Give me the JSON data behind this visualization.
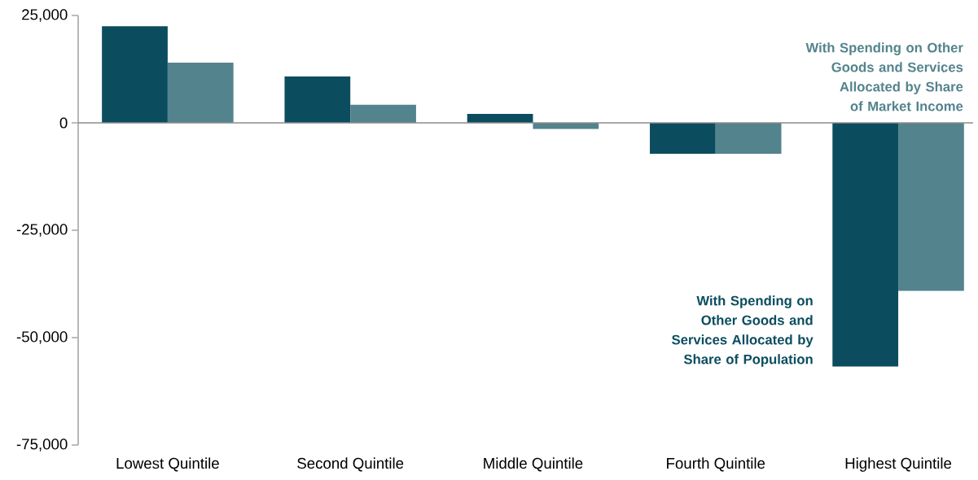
{
  "chart_data": {
    "type": "bar",
    "categories": [
      "Lowest Quintile",
      "Second Quintile",
      "Middle Quintile",
      "Fourth Quintile",
      "Highest Quintile"
    ],
    "series": [
      {
        "name": "With Spending on Other Goods and Services Allocated by Share of Population",
        "color": "#0b4d5f",
        "values": [
          22500,
          10800,
          2100,
          -7200,
          -56700
        ]
      },
      {
        "name": "With Spending on Other Goods and Services Allocated by Share of Market Income",
        "color": "#53838c",
        "values": [
          14000,
          4200,
          -1400,
          -7200,
          -39100
        ]
      }
    ],
    "ylim": [
      -75000,
      25000
    ],
    "yticks": [
      {
        "value": 25000,
        "label": "25,000"
      },
      {
        "value": 0,
        "label": "0"
      },
      {
        "value": -25000,
        "label": "-25,000"
      },
      {
        "value": -50000,
        "label": "-50,000"
      },
      {
        "value": -75000,
        "label": "-75,000"
      }
    ]
  }
}
